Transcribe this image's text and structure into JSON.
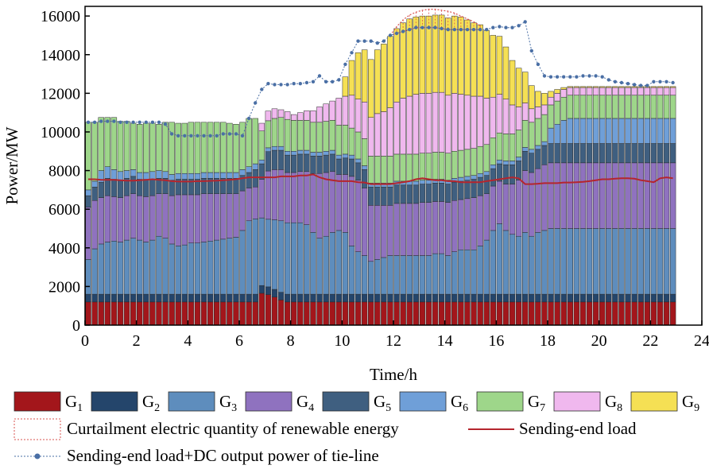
{
  "chart_data": {
    "type": "bar",
    "title": "",
    "xlabel": "Time/h",
    "ylabel": "Power/MW",
    "xlim": [
      0,
      24
    ],
    "ylim": [
      0,
      16500
    ],
    "x_ticks": [
      "0",
      "2",
      "4",
      "6",
      "8",
      "10",
      "12",
      "14",
      "16",
      "18",
      "20",
      "22",
      "24"
    ],
    "y_ticks": [
      "0",
      "2000",
      "4000",
      "6000",
      "8000",
      "10000",
      "12000",
      "14000",
      "16000"
    ],
    "interval_h": 0.25,
    "stacked": true,
    "series": [
      {
        "name": "G1",
        "label_main": "G",
        "label_sub": "1",
        "color": "#a3161b",
        "values": [
          1200,
          1200,
          1200,
          1200,
          1200,
          1200,
          1200,
          1200,
          1200,
          1200,
          1200,
          1200,
          1200,
          1200,
          1200,
          1200,
          1200,
          1200,
          1200,
          1200,
          1200,
          1200,
          1200,
          1200,
          1200,
          1200,
          1200,
          1650,
          1580,
          1450,
          1300,
          1200,
          1200,
          1200,
          1200,
          1200,
          1200,
          1200,
          1200,
          1200,
          1200,
          1200,
          1200,
          1200,
          1200,
          1200,
          1200,
          1200,
          1200,
          1200,
          1200,
          1200,
          1200,
          1200,
          1200,
          1200,
          1200,
          1200,
          1200,
          1200,
          1200,
          1200,
          1200,
          1200,
          1200,
          1200,
          1200,
          1200,
          1200,
          1200,
          1200,
          1200,
          1200,
          1200,
          1200,
          1200,
          1200,
          1200,
          1200,
          1200,
          1200,
          1200,
          1200,
          1200,
          1200,
          1200,
          1200,
          1200,
          1200,
          1200,
          1200,
          1200
        ]
      },
      {
        "name": "G2",
        "label_main": "G",
        "label_sub": "2",
        "color": "#24456b",
        "values": [
          400,
          400,
          400,
          400,
          400,
          400,
          400,
          400,
          400,
          400,
          400,
          400,
          400,
          400,
          400,
          400,
          400,
          400,
          400,
          400,
          400,
          400,
          400,
          400,
          400,
          400,
          400,
          400,
          400,
          400,
          400,
          400,
          400,
          400,
          400,
          400,
          400,
          400,
          400,
          400,
          400,
          400,
          400,
          400,
          400,
          400,
          400,
          400,
          400,
          400,
          400,
          400,
          400,
          400,
          400,
          400,
          400,
          400,
          400,
          400,
          400,
          400,
          400,
          400,
          400,
          400,
          400,
          400,
          400,
          400,
          400,
          400,
          400,
          400,
          400,
          400,
          400,
          400,
          400,
          400,
          400,
          400,
          400,
          400,
          400,
          400,
          400,
          400,
          400,
          400,
          400,
          400
        ]
      },
      {
        "name": "G3",
        "label_main": "G",
        "label_sub": "3",
        "color": "#5e8dbd",
        "values": [
          1800,
          2350,
          2600,
          2700,
          2750,
          2700,
          2800,
          2900,
          2800,
          2700,
          2800,
          3000,
          2900,
          2600,
          2500,
          2550,
          2650,
          2650,
          2700,
          2750,
          2800,
          2850,
          2900,
          2950,
          3300,
          3800,
          3900,
          3500,
          3500,
          3600,
          3700,
          3700,
          3700,
          3700,
          3600,
          3200,
          2900,
          3000,
          3200,
          3300,
          3200,
          2500,
          2200,
          2000,
          1700,
          1800,
          1900,
          2000,
          2000,
          2000,
          2000,
          2000,
          2000,
          2000,
          2100,
          2100,
          2000,
          2200,
          2300,
          2300,
          2300,
          2500,
          2800,
          3300,
          3650,
          3300,
          3100,
          3000,
          3200,
          3000,
          3200,
          3300,
          3400,
          3400,
          3400,
          3400,
          3400,
          3400,
          3400,
          3400,
          3400,
          3400,
          3400,
          3400,
          3400,
          3400,
          3400,
          3400,
          3400,
          3400,
          3400,
          3400
        ]
      },
      {
        "name": "G4",
        "label_main": "G",
        "label_sub": "4",
        "color": "#8f72bf",
        "values": [
          2700,
          2500,
          2400,
          2400,
          2300,
          2300,
          2300,
          2300,
          2300,
          2350,
          2300,
          2200,
          2300,
          2500,
          2650,
          2600,
          2500,
          2500,
          2500,
          2450,
          2400,
          2350,
          2300,
          2250,
          2050,
          1700,
          1650,
          2000,
          2500,
          2600,
          2650,
          2600,
          2600,
          2650,
          2750,
          3050,
          3350,
          3300,
          3150,
          2900,
          3000,
          3600,
          3700,
          3500,
          2900,
          2800,
          2700,
          2600,
          2700,
          2700,
          2700,
          2700,
          2750,
          2750,
          2700,
          2700,
          2750,
          2650,
          2600,
          2650,
          2700,
          2600,
          2400,
          2300,
          2200,
          2400,
          2600,
          2900,
          3200,
          3300,
          3300,
          3400,
          3400,
          3400,
          3400,
          3400,
          3400,
          3400,
          3400,
          3400,
          3400,
          3400,
          3400,
          3400,
          3400,
          3400,
          3400,
          3400,
          3400,
          3400,
          3400,
          3400
        ]
      },
      {
        "name": "G5",
        "label_main": "G",
        "label_sub": "5",
        "color": "#3f5f80",
        "values": [
          600,
          700,
          800,
          900,
          900,
          900,
          900,
          900,
          850,
          900,
          850,
          800,
          800,
          800,
          800,
          800,
          800,
          800,
          800,
          800,
          800,
          800,
          800,
          800,
          800,
          800,
          900,
          800,
          1000,
          1000,
          1000,
          900,
          900,
          900,
          900,
          900,
          900,
          900,
          900,
          800,
          850,
          900,
          900,
          950,
          950,
          950,
          950,
          950,
          950,
          950,
          950,
          950,
          950,
          950,
          950,
          950,
          950,
          950,
          950,
          950,
          950,
          950,
          950,
          900,
          900,
          1000,
          1000,
          1000,
          1000,
          1000,
          1000,
          1000,
          1000,
          1000,
          1000,
          1000,
          1000,
          1000,
          1000,
          1000,
          1000,
          1000,
          1000,
          1000,
          1000,
          1000,
          1000,
          1000,
          1000,
          1000,
          1000,
          1000
        ]
      },
      {
        "name": "G6",
        "label_main": "G",
        "label_sub": "6",
        "color": "#6f9fd8",
        "values": [
          300,
          300,
          600,
          600,
          500,
          450,
          400,
          350,
          350,
          350,
          400,
          400,
          350,
          300,
          300,
          300,
          300,
          300,
          300,
          300,
          300,
          300,
          300,
          300,
          300,
          300,
          300,
          200,
          200,
          200,
          200,
          200,
          200,
          200,
          200,
          200,
          200,
          200,
          200,
          200,
          200,
          200,
          200,
          200,
          200,
          200,
          200,
          200,
          200,
          200,
          200,
          200,
          200,
          200,
          200,
          200,
          200,
          200,
          200,
          200,
          200,
          200,
          200,
          200,
          200,
          200,
          200,
          200,
          200,
          200,
          200,
          200,
          800,
          1000,
          1200,
          1300,
          1300,
          1300,
          1300,
          1300,
          1300,
          1300,
          1300,
          1300,
          1300,
          1300,
          1300,
          1300,
          1300,
          1300,
          1300,
          1300
        ]
      },
      {
        "name": "G7",
        "label_main": "G",
        "label_sub": "7",
        "color": "#9ed68a",
        "values": [
          3500,
          3050,
          2750,
          2550,
          2700,
          2600,
          2550,
          2400,
          2500,
          2550,
          2500,
          2400,
          2550,
          2700,
          2600,
          2600,
          2650,
          2650,
          2600,
          2600,
          2600,
          2600,
          2550,
          2500,
          2450,
          2500,
          2350,
          1500,
          1400,
          1450,
          1500,
          1650,
          1600,
          1550,
          1550,
          1550,
          1550,
          1550,
          1550,
          1550,
          1500,
          1400,
          1400,
          1400,
          1400,
          1400,
          1400,
          1400,
          1400,
          1400,
          1400,
          1400,
          1400,
          1400,
          1400,
          1400,
          1400,
          1400,
          1400,
          1400,
          1400,
          1400,
          1400,
          1400,
          1400,
          1400,
          1400,
          1400,
          1400,
          1400,
          1400,
          1400,
          1200,
          1200,
          1200,
          1200,
          1200,
          1200,
          1200,
          1200,
          1200,
          1200,
          1200,
          1200,
          1200,
          1200,
          1200,
          1200,
          1200,
          1200,
          1200,
          1200
        ]
      },
      {
        "name": "G8",
        "label_main": "G",
        "label_sub": "8",
        "color": "#f0b8ee",
        "values": [
          0,
          0,
          0,
          0,
          0,
          0,
          0,
          0,
          0,
          0,
          0,
          0,
          0,
          0,
          0,
          0,
          0,
          0,
          0,
          0,
          0,
          0,
          0,
          0,
          0,
          0,
          0,
          400,
          500,
          500,
          400,
          400,
          300,
          400,
          500,
          600,
          800,
          900,
          1000,
          1400,
          1500,
          1700,
          1700,
          1900,
          2000,
          2200,
          2300,
          2500,
          2700,
          2900,
          3000,
          3100,
          3100,
          3100,
          3100,
          3100,
          3000,
          3000,
          2900,
          2800,
          2700,
          2600,
          2400,
          2100,
          2000,
          1800,
          1500,
          1200,
          900,
          700,
          600,
          500,
          400,
          400,
          400,
          400,
          400,
          400,
          400,
          400,
          400,
          400,
          400,
          400,
          400,
          400,
          400,
          400,
          400,
          400,
          400,
          400
        ]
      },
      {
        "name": "G9",
        "label_main": "G",
        "label_sub": "9",
        "color": "#f5e054",
        "values": [
          0,
          0,
          0,
          0,
          0,
          0,
          0,
          0,
          0,
          0,
          0,
          0,
          0,
          0,
          0,
          0,
          0,
          0,
          0,
          0,
          0,
          0,
          0,
          0,
          0,
          0,
          0,
          0,
          0,
          0,
          0,
          0,
          0,
          0,
          0,
          0,
          0,
          0,
          0,
          0,
          1000,
          1800,
          2400,
          2700,
          3000,
          3300,
          3500,
          3700,
          3800,
          3900,
          4000,
          4000,
          4000,
          4000,
          4000,
          4000,
          4000,
          4000,
          4000,
          3900,
          3800,
          3700,
          3500,
          3200,
          3000,
          2700,
          2300,
          2000,
          1600,
          1200,
          800,
          600,
          300,
          200,
          100,
          50,
          50,
          50,
          50,
          50,
          50,
          50,
          50,
          50,
          50,
          50,
          50,
          50,
          50,
          50,
          50,
          50
        ]
      }
    ],
    "lines": [
      {
        "name": "Sending-end load",
        "style": "solid",
        "color": "#b5252d",
        "values": [
          7550,
          7550,
          7520,
          7520,
          7520,
          7500,
          7480,
          7480,
          7500,
          7520,
          7550,
          7520,
          7500,
          7450,
          7430,
          7430,
          7430,
          7450,
          7450,
          7470,
          7480,
          7500,
          7520,
          7550,
          7600,
          7650,
          7650,
          7650,
          7650,
          7650,
          7700,
          7700,
          7700,
          7750,
          7750,
          7800,
          7650,
          7550,
          7500,
          7450,
          7450,
          7450,
          7400,
          7380,
          7300,
          7300,
          7300,
          7300,
          7350,
          7400,
          7450,
          7550,
          7600,
          7550,
          7500,
          7500,
          7450,
          7450,
          7400,
          7400,
          7400,
          7400,
          7450,
          7500,
          7550,
          7600,
          7650,
          7600,
          7300,
          7300,
          7320,
          7350,
          7350,
          7350,
          7380,
          7380,
          7400,
          7420,
          7450,
          7500,
          7550,
          7550,
          7580,
          7600,
          7600,
          7580,
          7500,
          7450,
          7400,
          7600,
          7650,
          7600
        ]
      },
      {
        "name": "Sending-end load+DC output power of tie-line",
        "style": "dot-marker",
        "color": "#4a6fa5",
        "values": [
          10500,
          10500,
          10550,
          10550,
          10550,
          10500,
          10500,
          10500,
          10500,
          10500,
          10500,
          10500,
          10400,
          9900,
          9800,
          9800,
          9800,
          9800,
          9800,
          9800,
          9800,
          9900,
          9900,
          9900,
          9800,
          10700,
          11500,
          12200,
          12500,
          12450,
          12450,
          12450,
          12500,
          12500,
          12550,
          12600,
          12900,
          12600,
          12600,
          12700,
          13500,
          14100,
          14700,
          14700,
          14700,
          14600,
          14700,
          15000,
          15100,
          15200,
          15300,
          15400,
          15400,
          15400,
          15400,
          15350,
          15300,
          15300,
          15300,
          15300,
          15300,
          15300,
          15300,
          15400,
          15450,
          15400,
          15400,
          15500,
          15700,
          14200,
          13500,
          12900,
          12850,
          12850,
          12850,
          12850,
          12850,
          12900,
          12900,
          12900,
          12850,
          12700,
          12600,
          12550,
          12500,
          12450,
          12400,
          12400,
          12600,
          12600,
          12600,
          12550
        ]
      }
    ],
    "curtailment": {
      "name": "Curtailment electric quantity of renewable energy",
      "color": "#d9534f",
      "start_index": 47,
      "end_index": 61,
      "peak_values": [
        15000,
        15450,
        15800,
        16050,
        16200,
        16300,
        16350,
        16350,
        16300,
        16250,
        16150,
        16000,
        15850,
        15700,
        15500
      ]
    },
    "legend": {
      "placement": "bottom"
    }
  }
}
